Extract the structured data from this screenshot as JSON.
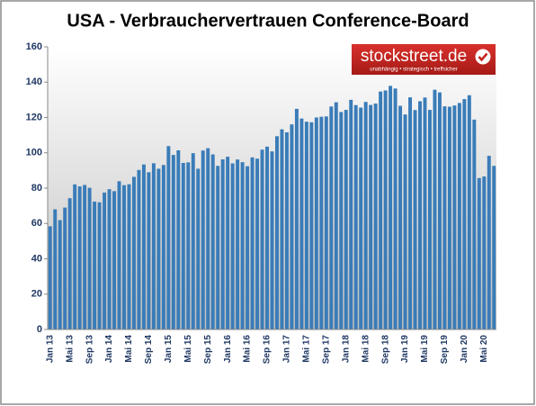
{
  "chart_data": {
    "type": "bar",
    "title": "USA - Verbrauchervertrauen Conference-Board",
    "logo": {
      "name": "stockstreet.de",
      "tagline": "unabhängig • strategisch • treffsicher"
    },
    "color": "#3a7cb8",
    "categories": [
      "Jan 13",
      null,
      null,
      null,
      "Mai 13",
      null,
      null,
      null,
      "Sep 13",
      null,
      null,
      null,
      "Jan 14",
      null,
      null,
      null,
      "Mai 14",
      null,
      null,
      null,
      "Sep 14",
      null,
      null,
      null,
      "Jan 15",
      null,
      null,
      null,
      "Mai 15",
      null,
      null,
      null,
      "Sep 15",
      null,
      null,
      null,
      "Jan 16",
      null,
      null,
      null,
      "Mai 16",
      null,
      null,
      null,
      "Sep 16",
      null,
      null,
      null,
      "Jan 17",
      null,
      null,
      null,
      "Mai 17",
      null,
      null,
      null,
      "Sep 17",
      null,
      null,
      null,
      "Jan 18",
      null,
      null,
      null,
      "Mai 18",
      null,
      null,
      null,
      "Sep 18",
      null,
      null,
      null,
      "Jan 19",
      null,
      null,
      null,
      "Mai 19",
      null,
      null,
      null,
      "Sep 19",
      null,
      null,
      null,
      "Jan 20",
      null,
      null,
      null,
      "Mai 20",
      null,
      null
    ],
    "values": [
      58.4,
      68,
      61.9,
      69,
      74.3,
      82.1,
      81,
      81.8,
      80.2,
      72.4,
      72,
      77.5,
      79.4,
      78.3,
      83.9,
      81.7,
      82.2,
      86.4,
      90.3,
      93.4,
      89,
      94.1,
      91,
      93.1,
      103.8,
      98.8,
      101.4,
      94.3,
      94.6,
      99.8,
      91,
      101.3,
      102.6,
      99.1,
      92.6,
      96.3,
      97.8,
      94,
      96.2,
      94.7,
      92.4,
      97.4,
      96.7,
      101.8,
      103.5,
      100.8,
      109.4,
      113.3,
      111.6,
      116.1,
      124.9,
      119.4,
      117.6,
      117.3,
      120,
      120.4,
      120.6,
      126.2,
      128.6,
      123.1,
      124.3,
      130,
      127,
      125.6,
      128.8,
      127.1,
      127.9,
      134.7,
      135.3,
      137.9,
      136.4,
      126.6,
      121.7,
      131.4,
      124.2,
      129.2,
      131.3,
      124.3,
      135.7,
      134.2,
      126.3,
      126.1,
      126.8,
      128.2,
      130.4,
      132.6,
      118.8,
      85.7,
      86.6,
      98.3,
      92.6
    ],
    "ylim": [
      0,
      160
    ],
    "yticks": [
      0,
      20,
      40,
      60,
      80,
      100,
      120,
      140,
      160
    ],
    "grid": false
  }
}
